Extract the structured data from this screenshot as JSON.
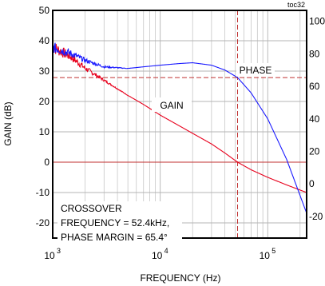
{
  "chart_data": {
    "type": "line",
    "corner_label": "toc32",
    "xlabel": "FREQUENCY (Hz)",
    "ylabel": "GAIN (dB)",
    "x_scale": "log",
    "xlim": [
      1000,
      230000
    ],
    "ylim": [
      -25,
      50
    ],
    "y2lim": [
      -33.3,
      106.7
    ],
    "x_tick_labels": [
      {
        "base": "10",
        "exp": "3"
      },
      {
        "base": "10",
        "exp": "4"
      },
      {
        "base": "10",
        "exp": "5"
      }
    ],
    "y_ticks": [
      50,
      40,
      30,
      20,
      10,
      0,
      -10,
      -20
    ],
    "y_tick_labels": [
      "50",
      "40",
      "30",
      "20",
      "10",
      "0",
      "-10",
      "-20"
    ],
    "y2_ticks": [
      100,
      80,
      60,
      40,
      20,
      0,
      -20
    ],
    "y2_tick_labels": [
      "100",
      "80",
      "60",
      "40",
      "20",
      "0",
      "-20"
    ],
    "grid": true,
    "series": [
      {
        "name": "GAIN",
        "axis": "left",
        "color": "#e8001c",
        "x": [
          1000,
          1500,
          2000,
          3000,
          5000,
          7000,
          10000,
          15000,
          20000,
          30000,
          40000,
          52400,
          70000,
          100000,
          150000,
          230000
        ],
        "y": [
          38,
          34.5,
          31,
          27,
          22,
          19,
          15.5,
          12,
          9.5,
          6,
          3,
          0,
          -2.5,
          -5,
          -7.5,
          -10
        ]
      },
      {
        "name": "PHASE",
        "axis": "right",
        "color": "#1a1aff",
        "x": [
          1000,
          1500,
          2000,
          3000,
          5000,
          7000,
          10000,
          15000,
          20000,
          30000,
          40000,
          52400,
          70000,
          100000,
          150000,
          230000
        ],
        "y": [
          84,
          80,
          76,
          72,
          71,
          72,
          73,
          74,
          74.5,
          73,
          70,
          65.4,
          56,
          40,
          15,
          -18
        ]
      }
    ],
    "reference_lines": [
      {
        "axis": "right",
        "y": 65.4
      },
      {
        "axis": "left",
        "y": 0
      },
      {
        "axis": "x",
        "x": 52400
      }
    ],
    "annotations": {
      "gain_label": "GAIN",
      "phase_label": "PHASE",
      "crossover_lines": [
        "CROSSOVER",
        "FREQUENCY = 52.4kHz,",
        "PHASE MARGIN = 65.4°"
      ]
    },
    "colors": {
      "gain": "#e8001c",
      "phase": "#1a1aff",
      "grid": "#b4b4b4"
    }
  }
}
